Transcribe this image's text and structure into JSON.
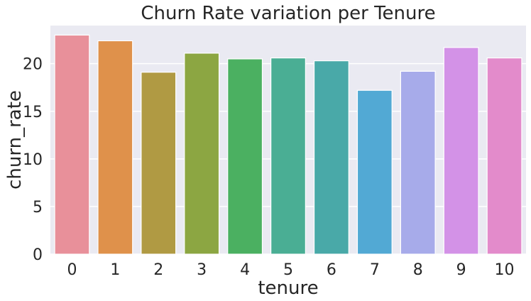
{
  "chart_data": {
    "type": "bar",
    "title": "Churn Rate variation per Tenure",
    "xlabel": "tenure",
    "ylabel": "churn_rate",
    "categories": [
      "0",
      "1",
      "2",
      "3",
      "4",
      "5",
      "6",
      "7",
      "8",
      "9",
      "10"
    ],
    "values": [
      23.0,
      22.4,
      19.1,
      21.1,
      20.5,
      20.6,
      20.3,
      17.2,
      19.2,
      21.7,
      20.6
    ],
    "ylim": [
      0,
      24.0
    ],
    "yticks": [
      0,
      5,
      10,
      15,
      20
    ],
    "grid": true,
    "legend": "none",
    "colors": [
      "#e8909a",
      "#df914b",
      "#b09a43",
      "#8ca642",
      "#4bb061",
      "#4aae94",
      "#49a9a8",
      "#52a9d4",
      "#a7abea",
      "#d392e7",
      "#e38bcb"
    ],
    "plot_background": "#eaeaf2"
  }
}
